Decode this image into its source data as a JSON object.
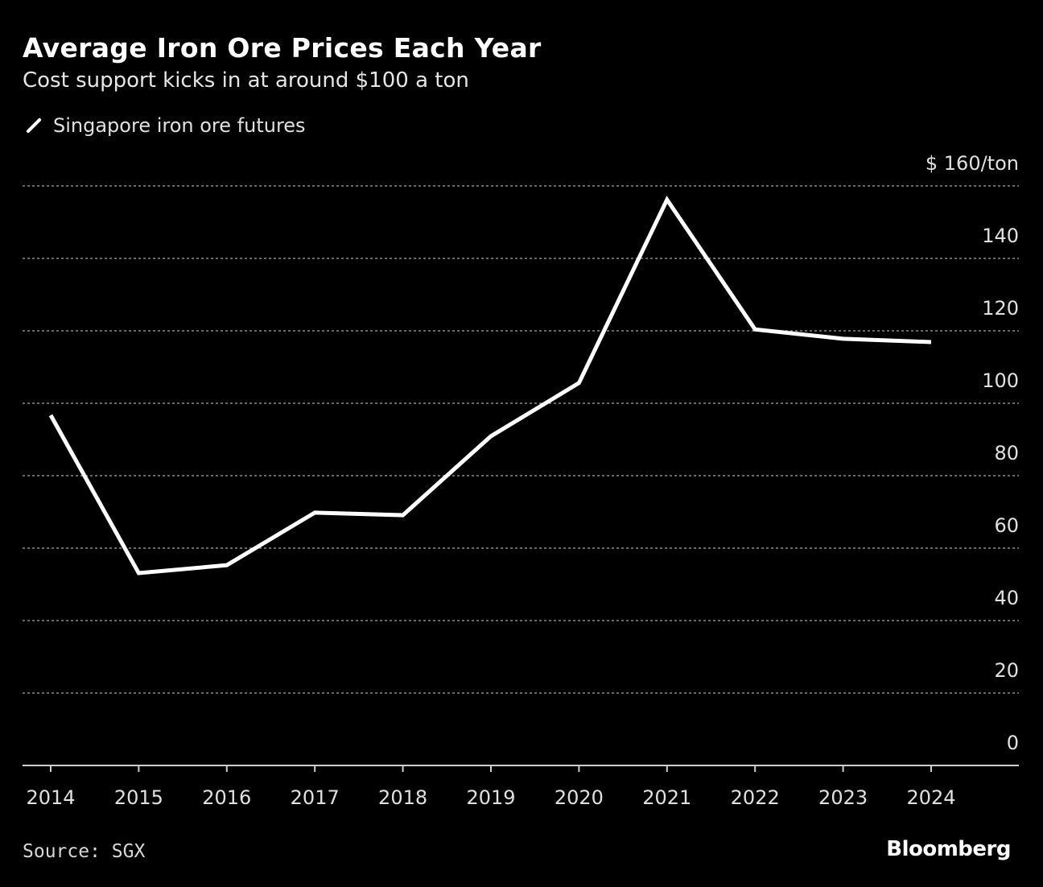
{
  "chart_data": {
    "type": "line",
    "title": "Average Iron Ore Prices Each Year",
    "subtitle": "Cost support kicks in at around $100 a ton",
    "x": [
      "2014",
      "2015",
      "2016",
      "2017",
      "2018",
      "2019",
      "2020",
      "2021",
      "2022",
      "2023",
      "2024"
    ],
    "series": [
      {
        "name": "Singapore iron ore futures",
        "color": "#ffffff",
        "values": [
          96.7,
          53.1,
          55.3,
          69.8,
          69.1,
          90.9,
          105.6,
          156.2,
          120.4,
          117.8,
          116.9
        ]
      }
    ],
    "ylim": [
      0,
      160
    ],
    "yticks": [
      0,
      20,
      40,
      60,
      80,
      100,
      120,
      140,
      160
    ],
    "ytick_labels": [
      "0",
      "20",
      "40",
      "60",
      "80",
      "100",
      "120",
      "140",
      "$ 160/ton"
    ],
    "grid": true,
    "legend_placement": "top-left",
    "source": "Source: SGX",
    "brand": "Bloomberg"
  }
}
